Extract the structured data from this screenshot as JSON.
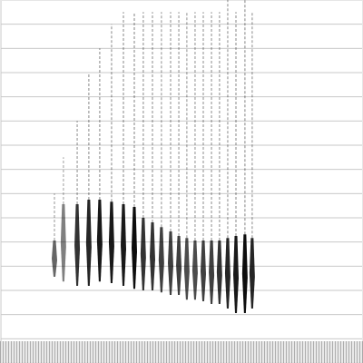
{
  "chart_data": {
    "type": "spectrogram",
    "color": "#000000",
    "grid": true,
    "tick_labels": false,
    "xlim": [
      0,
      15
    ],
    "ylim": [
      0,
      15
    ],
    "yticks": [
      1,
      2,
      3,
      4,
      5,
      6,
      7,
      8,
      9,
      10,
      11,
      12,
      13,
      14
    ],
    "x": [
      2.25,
      2.62,
      3.19,
      3.67,
      4.12,
      4.61,
      5.1,
      5.55,
      5.92,
      6.3,
      6.67,
      7.05,
      7.39,
      7.72,
      8.06,
      8.4,
      8.74,
      9.07,
      9.41,
      9.75,
      10.12,
      10.42
    ],
    "values": [
      5.06,
      6.56,
      6.56,
      6.75,
      6.75,
      6.67,
      6.56,
      6.45,
      6.0,
      5.81,
      5.62,
      5.44,
      5.25,
      5.17,
      5.06,
      5.06,
      5.06,
      5.06,
      5.17,
      5.25,
      5.32,
      5.17
    ],
    "low": [
      3.56,
      3.37,
      3.19,
      3.19,
      3.37,
      3.3,
      3.19,
      3.07,
      3.0,
      3.0,
      2.92,
      2.81,
      2.81,
      2.62,
      2.62,
      2.55,
      2.44,
      2.44,
      2.25,
      2.06,
      2.06,
      2.25
    ],
    "intensity": [
      0.6,
      0.5,
      0.8,
      0.85,
      0.9,
      0.9,
      0.9,
      0.95,
      0.8,
      0.8,
      0.75,
      0.75,
      0.75,
      0.7,
      0.7,
      0.75,
      0.75,
      0.8,
      0.85,
      0.9,
      0.95,
      0.85
    ],
    "harmonic_top": [
      7.0,
      8.5,
      10.0,
      12.0,
      13.0,
      14.0,
      14.5,
      14.5,
      14.5,
      14.5,
      14.5,
      14.5,
      14.5,
      14.5,
      14.5,
      14.5,
      14.5,
      14.5,
      15.0,
      14.5,
      15.0,
      14.5
    ],
    "noise_band": [
      0,
      0.9
    ]
  }
}
